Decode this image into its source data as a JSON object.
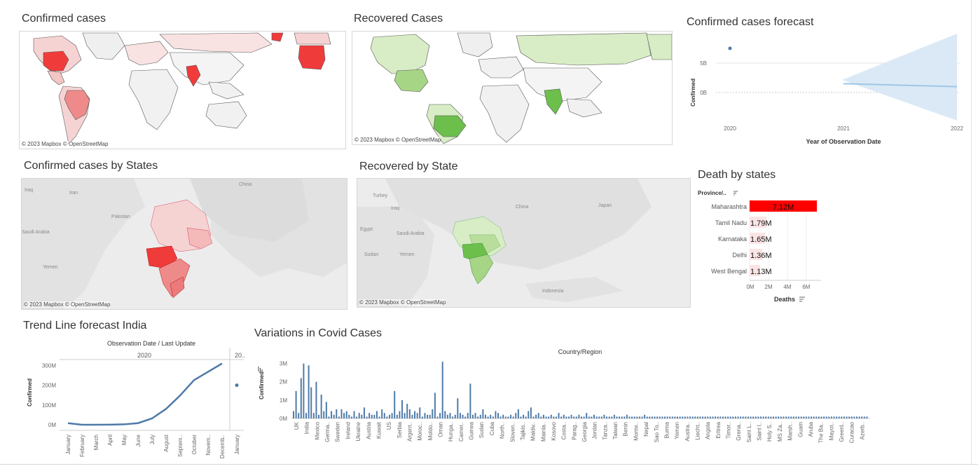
{
  "attribution": "© 2023 Mapbox  © OpenStreetMap",
  "colors": {
    "confirmed_high": "#f03b3b",
    "confirmed_low": "#f6d3d3",
    "recovered_high": "#6dbf4b",
    "recovered_low": "#d8ecc6",
    "forecast_band": "#dbe9f6",
    "line_blue": "#4e79a7"
  },
  "panels": {
    "confirmed_world": {
      "title": "Confirmed cases"
    },
    "recovered_world": {
      "title": "Recovered Cases"
    },
    "forecast": {
      "title": "Confirmed cases forecast",
      "ylabel": "Confirmed",
      "xlabel": "Year of Observation Date",
      "yticks": [
        "5B",
        "0B"
      ],
      "xticks": [
        "2020",
        "2021",
        "2022"
      ]
    },
    "confirmed_states": {
      "title": "Confirmed cases by States",
      "labels": [
        "Iraq",
        "Iran",
        "Pakistan",
        "China",
        "Saudi Arabia",
        "Yemen"
      ]
    },
    "recovered_states": {
      "title": "Recovered by State",
      "labels": [
        "Turkey",
        "Iraq",
        "Egypt",
        "Saudi Arabia",
        "Sudan",
        "Yemen",
        "China",
        "Japan",
        "Indonesia"
      ]
    },
    "deaths": {
      "title": "Death by states",
      "header": "Province/..",
      "xlabel": "Deaths",
      "xticks": [
        "0M",
        "2M",
        "4M",
        "6M"
      ]
    },
    "trend": {
      "title": "Trend Line forecast India",
      "header": "Observation Date  /  Last Update",
      "year": "2020",
      "year2": "20..",
      "ylabel": "Confirmed",
      "yticks": [
        "300M",
        "200M",
        "100M",
        "0M"
      ]
    },
    "variations": {
      "title": "Variations in Covid Cases",
      "header": "Country/Region",
      "ylabel": "Confirmed",
      "yticks": [
        "3M",
        "2M",
        "1M",
        "0M"
      ],
      "xticks": [
        "UK",
        "India",
        "Mexico",
        "Germa..",
        "Sweden",
        "Ireland",
        "Ukraine",
        "Austria",
        "Kuwait",
        "US",
        "Serbia",
        "Argent..",
        "Moroc..",
        "Moldo..",
        "Oman",
        "Hunga..",
        "Camer..",
        "Guinea",
        "Sudan",
        "Cuba",
        "North..",
        "Sloven..",
        "Tajikis..",
        "Maldiv..",
        "Mainla..",
        "Kosovo",
        "Costa..",
        "Parag..",
        "Georgia",
        "Jordan",
        "Tanza..",
        "Taiwan",
        "Benin",
        "Monte..",
        "Nepal",
        "Sao To..",
        "Burma",
        "Yemen",
        "Austra..",
        "Liecht..",
        "Angola",
        "Eritrea",
        "Timor..",
        "Grena..",
        "Saint L..",
        "Saint l..",
        "Holy S..",
        "MS Za..",
        "Marsh..",
        "Guam",
        "Aruba",
        "The Ba..",
        "Mayot..",
        "Greenl..",
        "Curacao",
        "Azerb.."
      ]
    }
  },
  "chart_data": [
    {
      "type": "line",
      "title": "Confirmed cases forecast",
      "xlabel": "Year of Observation Date",
      "ylabel": "Confirmed",
      "x": [
        "2020",
        "2021",
        "2022"
      ],
      "series": [
        {
          "points": [
            {
              "x": "2020",
              "y": 7.5
            }
          ]
        },
        {
          "points": [
            {
              "x": "2021",
              "y": 1.5
            },
            {
              "x": "2022",
              "y": 1.0
            }
          ]
        }
      ],
      "y_units": "B"
    },
    {
      "type": "bar",
      "title": "Death by states",
      "xlabel": "Deaths",
      "categories": [
        "Maharashtra",
        "Tamil Nadu",
        "Karnataka",
        "Delhi",
        "West Bengal"
      ],
      "values": [
        7.12,
        1.79,
        1.65,
        1.36,
        1.13
      ],
      "value_labels": [
        "7.12M",
        "1.79M",
        "1.65M",
        "1.36M",
        "1.13M"
      ],
      "xlim": [
        0,
        7
      ],
      "units": "M"
    },
    {
      "type": "line",
      "title": "Trend Line forecast India",
      "ylabel": "Confirmed",
      "categories": [
        "January",
        "February",
        "March",
        "April",
        "May",
        "June",
        "July",
        "August",
        "Septem..",
        "October",
        "Novem..",
        "Decemb.."
      ],
      "values": [
        8,
        0,
        0,
        0.5,
        2,
        8,
        32,
        80,
        148,
        226,
        268,
        310
      ],
      "extra_category": "January",
      "extra_value": 200,
      "ylim": [
        0,
        330
      ],
      "units": "M"
    },
    {
      "type": "bar",
      "title": "Variations in Covid Cases",
      "xlabel": "Country/Region",
      "ylabel": "Confirmed",
      "ylim": [
        0,
        3.2
      ],
      "units": "M",
      "values": [
        0.4,
        1.5,
        0.3,
        2.2,
        3.0,
        0.3,
        2.9,
        1.7,
        0.3,
        2.0,
        0.2,
        1.3,
        0.4,
        0.9,
        0.1,
        0.4,
        0.2,
        0.5,
        0.1,
        0.5,
        0.3,
        0.4,
        0.2,
        0.1,
        0.4,
        0.1,
        0.3,
        0.2,
        0.6,
        0.1,
        0.3,
        0.2,
        0.2,
        0.4,
        0.1,
        0.5,
        0.3,
        0.1,
        0.2,
        0.3,
        1.5,
        0.2,
        0.4,
        1.0,
        0.3,
        0.8,
        0.5,
        0.2,
        0.4,
        0.3,
        0.6,
        0.1,
        0.3,
        0.2,
        0.2,
        0.5,
        1.4,
        0.1,
        0.3,
        3.1,
        0.4,
        0.2,
        0.3,
        0.1,
        0.2,
        1.1,
        0.3,
        0.2,
        0.1,
        0.3,
        1.9,
        0.2,
        0.3,
        0.1,
        0.2,
        0.5,
        0.2,
        0.1,
        0.2,
        0.1,
        0.4,
        0.3,
        0.1,
        0.2,
        0.1,
        0.1,
        0.2,
        0.1,
        0.3,
        0.5,
        0.1,
        0.2,
        0.1,
        0.4,
        0.6,
        0.1,
        0.2,
        0.3,
        0.1,
        0.2,
        0.1,
        0.1,
        0.2,
        0.1,
        0.1,
        0.3,
        0.1,
        0.2,
        0.1,
        0.1,
        0.2,
        0.1,
        0.1,
        0.2,
        0.1,
        0.1,
        0.3,
        0.1,
        0.1,
        0.2,
        0.1,
        0.1,
        0.1,
        0.2,
        0.1,
        0.1,
        0.1,
        0.2,
        0.1,
        0.1,
        0.1,
        0.1,
        0.2,
        0.1,
        0.1,
        0.1,
        0.1,
        0.1,
        0.1,
        0.2,
        0.1,
        0.1,
        0.1,
        0.1,
        0.1,
        0.1,
        0.1,
        0.1,
        0.1,
        0.1,
        0.1,
        0.1,
        0.1,
        0.1,
        0.1,
        0.1,
        0.1,
        0.1,
        0.1,
        0.1,
        0.1,
        0.1,
        0.1,
        0.1,
        0.1,
        0.1,
        0.1,
        0.1,
        0.1,
        0.1,
        0.1,
        0.1,
        0.1,
        0.1,
        0.1,
        0.1,
        0.1,
        0.1,
        0.1,
        0.1,
        0.1,
        0.1,
        0.1,
        0.1,
        0.1,
        0.1,
        0.1,
        0.1,
        0.1,
        0.1,
        0.1,
        0.1,
        0.1,
        0.1,
        0.1,
        0.1,
        0.1,
        0.1,
        0.1,
        0.1,
        0.1,
        0.1,
        0.1,
        0.1,
        0.1,
        0.1,
        0.1,
        0.1,
        0.1,
        0.1,
        0.1,
        0.1,
        0.1,
        0.1,
        0.1,
        0.1,
        0.1,
        0.1,
        0.1,
        0.1,
        0.1,
        0.1,
        0.1,
        0.1,
        0.1,
        0.1,
        0.1,
        0.1
      ]
    }
  ]
}
